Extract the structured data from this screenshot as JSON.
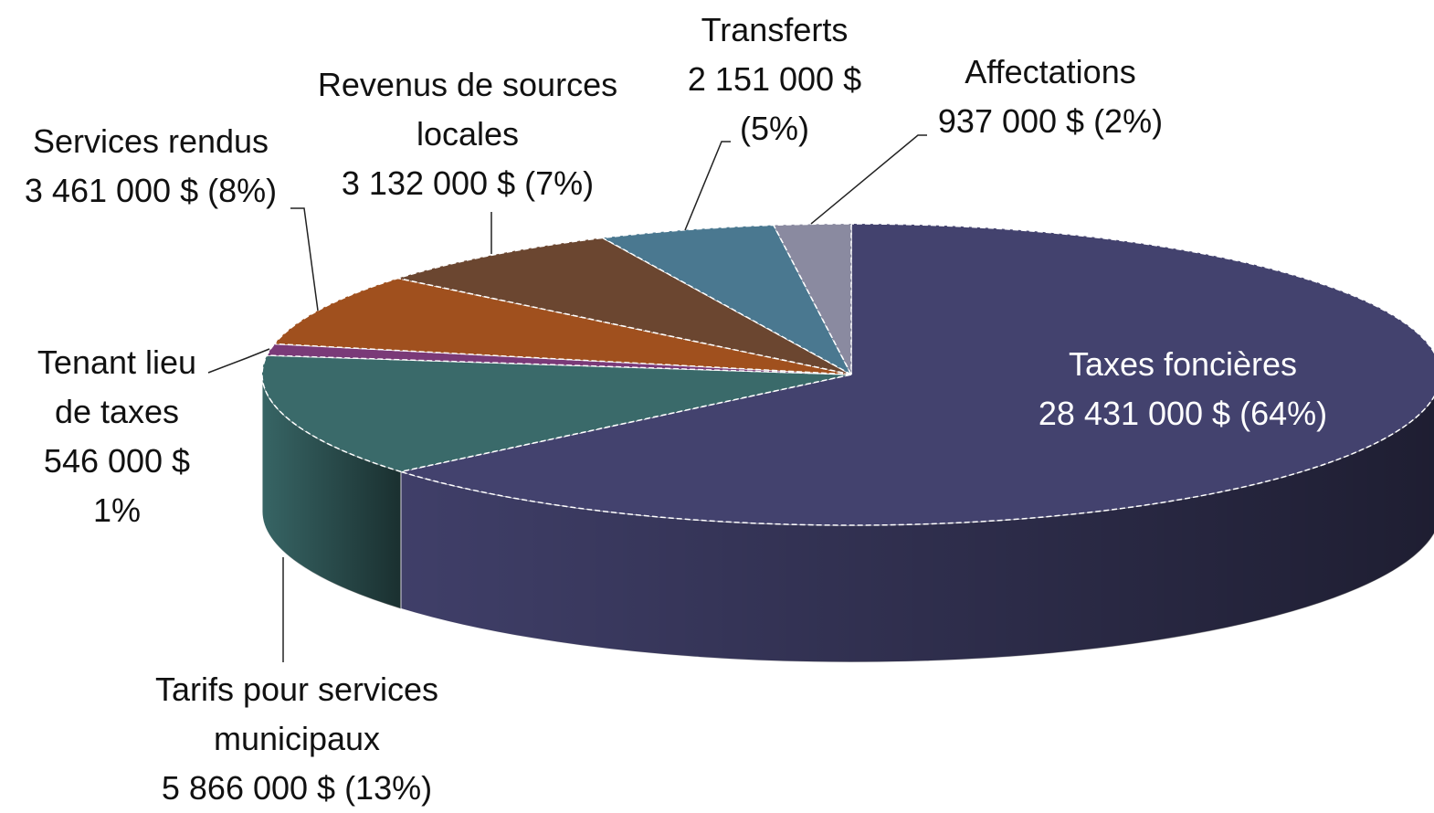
{
  "chart_data": {
    "type": "pie",
    "categories": [
      "Taxes foncières",
      "Tarifs pour services municipaux",
      "Tenant lieu de taxes",
      "Services rendus",
      "Revenus de sources locales",
      "Transferts",
      "Affectations"
    ],
    "values": [
      28431000,
      5866000,
      546000,
      3461000,
      3132000,
      2151000,
      937000
    ],
    "value_labels": [
      "28 431 000 $ (64%)",
      "5 866 000 $ (13%)",
      "546 000 $ 1%",
      "3 461 000 $ (8%)",
      "3 132 000 $ (7%)",
      "2 151 000 $ (5%)",
      "937 000 $ (2%)"
    ],
    "colors": [
      "#43426e",
      "#3a6a6a",
      "#7a3a78",
      "#a0501e",
      "#6b4630",
      "#4a7890",
      "#8a8aa0"
    ]
  }
}
